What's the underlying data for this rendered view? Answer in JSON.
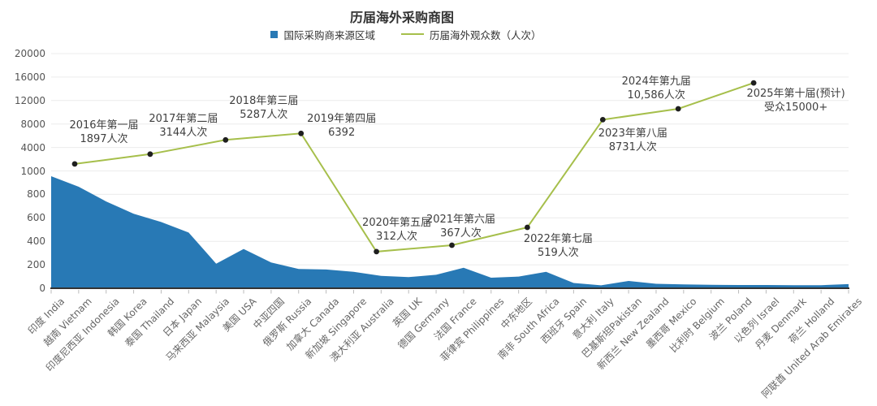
{
  "title": "历届海外采购商图",
  "legend": {
    "items": [
      {
        "label": "国际采购商来源区域",
        "swatch": "square",
        "color": "#2879b5"
      },
      {
        "label": "历届海外观众数（人次）",
        "swatch": "line",
        "color": "#a6bf4b"
      }
    ]
  },
  "chart_data": {
    "type": "combo (area + line)",
    "title": "历届海外采购商图",
    "grid": true,
    "legend_position": "top",
    "y_axis": {
      "note": "dual stacked scale: lower section 0-1000 (step 200) for area series, upper section 1000-20000 for line series",
      "tick_labels": [
        "20000",
        "16000",
        "12000",
        "8000",
        "4000",
        "1000",
        "800",
        "600",
        "400",
        "200",
        "0"
      ]
    },
    "categories": [
      "印度 India",
      "越南 Vietnam",
      "印度尼西亚 Indonesia",
      "韩国 Korea",
      "泰国 Thailand",
      "日本 Japan",
      "马来西亚 Malaysia",
      "美国 USA",
      "中亚四国",
      "俄罗斯 Russia",
      "加拿大 Canada",
      "新加坡 Singapore",
      "澳大利亚 Australia",
      "英国 UK",
      "德国 Germany",
      "法国 France",
      "菲律宾 Philippines",
      "中东地区",
      "南非 South Africa",
      "西班牙 Spain",
      "意大利 Italy",
      "巴基斯坦Pakistan",
      "新西兰 New Zealand",
      "墨西哥 Mexico",
      "比利时 Belgium",
      "波兰 Poland",
      "以色列 Israel",
      "丹麦 Denmark",
      "荷兰 Holland",
      "阿联酋 United Arab Emirates"
    ],
    "series": [
      {
        "name": "国际采购商来源区域",
        "type": "area",
        "color": "#2879b5",
        "values": [
          955,
          865,
          740,
          635,
          565,
          475,
          210,
          335,
          220,
          165,
          160,
          140,
          105,
          95,
          115,
          175,
          90,
          100,
          140,
          45,
          25,
          62,
          38,
          33,
          30,
          28,
          28,
          26,
          26,
          35
        ]
      },
      {
        "name": "历届海外观众数（人次）",
        "type": "line",
        "color": "#a6bf4b",
        "marker_color": "#1f1f1f",
        "points": [
          {
            "title": "2016年第一届",
            "subtitle": "1897人次",
            "value": 1897
          },
          {
            "title": "2017年第二届",
            "subtitle": "3144人次",
            "value": 3144
          },
          {
            "title": "2018年第三届",
            "subtitle": "5287人次",
            "value": 5287
          },
          {
            "title": "2019年第四届",
            "subtitle": "6392",
            "value": 6392
          },
          {
            "title": "2020年第五届",
            "subtitle": "312人次",
            "value": 312
          },
          {
            "title": "2021年第六届",
            "subtitle": "367人次",
            "value": 367
          },
          {
            "title": "2022年第七届",
            "subtitle": "519人次",
            "value": 519
          },
          {
            "title": "2023年第八届",
            "subtitle": "8731人次",
            "value": 8731
          },
          {
            "title": "2024年第九届",
            "subtitle": "10,586人次",
            "value": 10586
          },
          {
            "title": "2025年第十届(预计)",
            "subtitle": "受众15000+",
            "value": 15000
          }
        ]
      }
    ]
  }
}
